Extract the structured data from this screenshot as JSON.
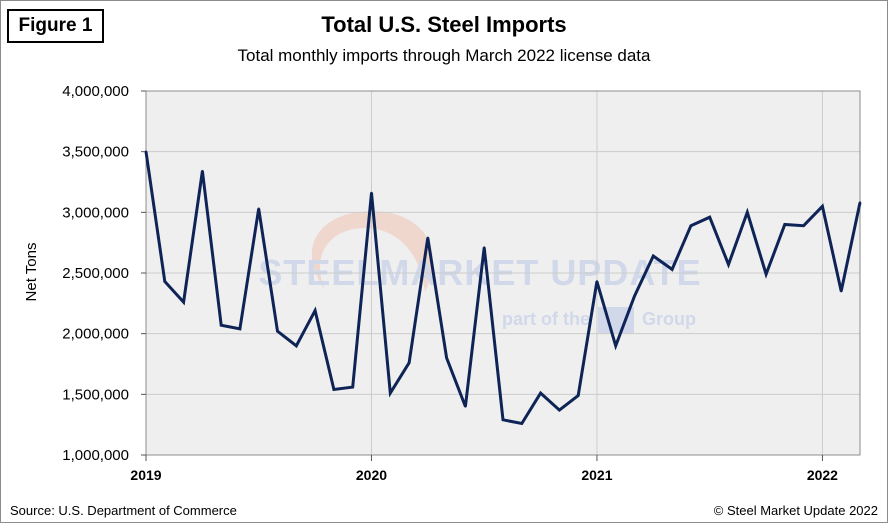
{
  "figure_label": "Figure 1",
  "source": "Source: U.S. Department of Commerce",
  "copyright": "© Steel Market Update 2022",
  "watermark": {
    "main": "STEELMARKET UPDATE",
    "sub_prefix": "part of the",
    "sub_suffix": "Group"
  },
  "colors": {
    "line": "#0f2456",
    "plot_bg": "#efefef",
    "grid": "#cccccc",
    "watermark": "#b8c6e6",
    "swoosh": "#f1c4b4"
  },
  "chart_data": {
    "type": "line",
    "title": "Total U.S. Steel Imports",
    "subtitle": "Total monthly imports through March 2022 license data",
    "xlabel": "",
    "ylabel": "Net Tons",
    "ylim": [
      1000000,
      4000000
    ],
    "yticks": [
      1000000,
      1500000,
      2000000,
      2500000,
      3000000,
      3500000,
      4000000
    ],
    "ytick_labels": [
      "1,000,000",
      "1,500,000",
      "2,000,000",
      "2,500,000",
      "3,000,000",
      "3,500,000",
      "4,000,000"
    ],
    "x_year_ticks": [
      {
        "label": "2019",
        "index": 0
      },
      {
        "label": "2020",
        "index": 12
      },
      {
        "label": "2021",
        "index": 24
      },
      {
        "label": "2022",
        "index": 36
      }
    ],
    "grid": true,
    "series": [
      {
        "name": "Total U.S. Steel Imports",
        "x": [
          "Jan 2019",
          "Feb 2019",
          "Mar 2019",
          "Apr 2019",
          "May 2019",
          "Jun 2019",
          "Jul 2019",
          "Aug 2019",
          "Sep 2019",
          "Oct 2019",
          "Nov 2019",
          "Dec 2019",
          "Jan 2020",
          "Feb 2020",
          "Mar 2020",
          "Apr 2020",
          "May 2020",
          "Jun 2020",
          "Jul 2020",
          "Aug 2020",
          "Sep 2020",
          "Oct 2020",
          "Nov 2020",
          "Dec 2020",
          "Jan 2021",
          "Feb 2021",
          "Mar 2021",
          "Apr 2021",
          "May 2021",
          "Jun 2021",
          "Jul 2021",
          "Aug 2021",
          "Sep 2021",
          "Oct 2021",
          "Nov 2021",
          "Dec 2021",
          "Jan 2022",
          "Feb 2022",
          "Mar 2022"
        ],
        "values": [
          3500000,
          2430000,
          2260000,
          3340000,
          2070000,
          2040000,
          3030000,
          2020000,
          1900000,
          2190000,
          1540000,
          1560000,
          3160000,
          1510000,
          1760000,
          2790000,
          1800000,
          1400000,
          2710000,
          1290000,
          1260000,
          1510000,
          1370000,
          1490000,
          2430000,
          1900000,
          2310000,
          2640000,
          2530000,
          2890000,
          2960000,
          2570000,
          3000000,
          2490000,
          2900000,
          2890000,
          3050000,
          2350000,
          3080000
        ]
      }
    ]
  }
}
